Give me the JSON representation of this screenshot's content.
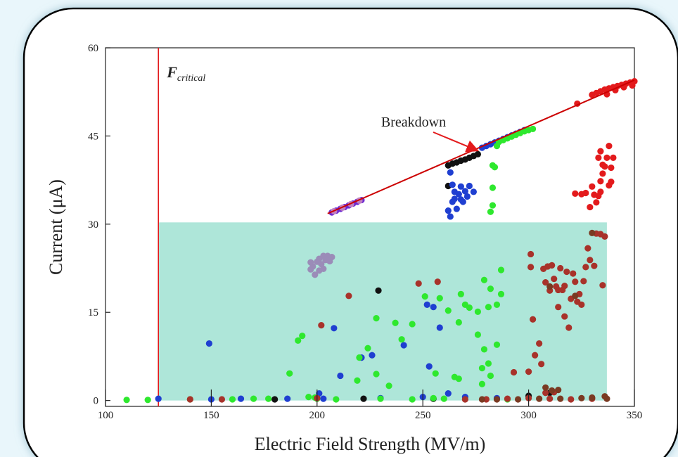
{
  "chart_data": {
    "type": "scatter",
    "xlabel": "Electric Field Strength (MV/m)",
    "ylabel": "Current (μA)",
    "xlim": [
      100,
      350
    ],
    "ylim": [
      -1,
      60
    ],
    "xticks": [
      "100",
      "150",
      "200",
      "250",
      "300",
      "350"
    ],
    "yticks": [
      "0",
      "15",
      "30",
      "45",
      "60"
    ],
    "critical_line": {
      "x": 125,
      "label_main": "F",
      "label_sub": "critical",
      "color": "#e31a1c"
    },
    "shaded_region": {
      "x_range": [
        125,
        337
      ],
      "y_range": [
        0,
        30.3
      ],
      "color": "#aee6d9"
    },
    "fit_line": {
      "x": [
        205,
        350
      ],
      "y": [
        31.8,
        54.5
      ],
      "color": "#cc0000"
    },
    "annotation": {
      "text": "Breakdown",
      "arrow_to": [
        276,
        42.5
      ]
    },
    "grid": false,
    "legend": "none",
    "series": [
      {
        "color": "#6f2bd1",
        "points": [
          [
            207,
            32
          ],
          [
            209,
            32.3
          ],
          [
            211,
            32.6
          ],
          [
            213,
            32.9
          ],
          [
            215,
            33.2
          ],
          [
            217,
            33.5
          ],
          [
            219,
            33.8
          ],
          [
            221,
            34.1
          ]
        ]
      },
      {
        "color": "#c07fc0",
        "points": [
          [
            208,
            32.2
          ],
          [
            212,
            32.8
          ],
          [
            216,
            33.4
          ],
          [
            220,
            34
          ]
        ]
      },
      {
        "color": "#111111",
        "points": [
          [
            262,
            40
          ],
          [
            264,
            40.3
          ],
          [
            266,
            40.5
          ],
          [
            268,
            40.8
          ],
          [
            270,
            41
          ],
          [
            272,
            41.3
          ],
          [
            274,
            41.6
          ],
          [
            276,
            41.9
          ],
          [
            262,
            36.5
          ],
          [
            229,
            18.7
          ],
          [
            300,
            0.8
          ],
          [
            310,
            1.3
          ],
          [
            255,
            0.3
          ],
          [
            222,
            0.3
          ],
          [
            180,
            0.2
          ]
        ]
      },
      {
        "color": "#1f3fd1",
        "points": [
          [
            278,
            43
          ],
          [
            280,
            43.3
          ],
          [
            282,
            43.6
          ],
          [
            284,
            43.9
          ],
          [
            286,
            44.2
          ],
          [
            288,
            44.5
          ],
          [
            290,
            44.8
          ],
          [
            292,
            45.1
          ],
          [
            294,
            45.4
          ],
          [
            296,
            45.7
          ],
          [
            298,
            46
          ],
          [
            263,
            38.8
          ],
          [
            265,
            35.5
          ],
          [
            264,
            33.8
          ],
          [
            262,
            32.3
          ],
          [
            263,
            31.3
          ],
          [
            266,
            32.6
          ],
          [
            268,
            34.2
          ],
          [
            270,
            35.6
          ],
          [
            272,
            36.5
          ],
          [
            274,
            35.5
          ],
          [
            271,
            34.7
          ],
          [
            269,
            33.8
          ],
          [
            267,
            35.1
          ],
          [
            265,
            34.3
          ],
          [
            264,
            36.7
          ],
          [
            268,
            36.4
          ],
          [
            149,
            9.7
          ],
          [
            208,
            12.3
          ],
          [
            211,
            4.2
          ],
          [
            221,
            7.3
          ],
          [
            226,
            7.7
          ],
          [
            241,
            9.4
          ],
          [
            252,
            16.3
          ],
          [
            255,
            15.9
          ],
          [
            258,
            12.4
          ],
          [
            253,
            5.8
          ],
          [
            201,
            1.2
          ],
          [
            203,
            0.3
          ],
          [
            150,
            0.2
          ],
          [
            125,
            0.3
          ],
          [
            164,
            0.3
          ],
          [
            186,
            0.3
          ],
          [
            230,
            0.4
          ],
          [
            250,
            0.6
          ],
          [
            262,
            1.2
          ],
          [
            270,
            0.6
          ],
          [
            285,
            0.4
          ]
        ]
      },
      {
        "color": "#2ee82e",
        "points": [
          [
            286,
            44
          ],
          [
            288,
            44.3
          ],
          [
            290,
            44.6
          ],
          [
            292,
            44.9
          ],
          [
            294,
            45.2
          ],
          [
            296,
            45.5
          ],
          [
            298,
            45.8
          ],
          [
            300,
            46
          ],
          [
            302,
            46.2
          ],
          [
            285,
            43.3
          ],
          [
            283,
            40
          ],
          [
            284,
            39.7
          ],
          [
            283,
            36.2
          ],
          [
            283,
            33.2
          ],
          [
            282,
            32.1
          ],
          [
            279,
            20.5
          ],
          [
            282,
            19
          ],
          [
            285,
            16.3
          ],
          [
            281,
            15.9
          ],
          [
            287,
            18.1
          ],
          [
            287,
            22.2
          ],
          [
            276,
            15.1
          ],
          [
            272,
            15.8
          ],
          [
            270,
            16.3
          ],
          [
            268,
            18.1
          ],
          [
            267,
            13.3
          ],
          [
            262,
            15.3
          ],
          [
            258,
            17.4
          ],
          [
            251,
            17.7
          ],
          [
            245,
            13
          ],
          [
            240,
            10.4
          ],
          [
            237,
            13.2
          ],
          [
            228,
            14
          ],
          [
            224,
            8.9
          ],
          [
            220,
            7.3
          ],
          [
            219,
            3.4
          ],
          [
            191,
            10.2
          ],
          [
            193,
            11
          ],
          [
            187,
            4.6
          ],
          [
            209,
            0.2
          ],
          [
            228,
            4.5
          ],
          [
            234,
            2.5
          ],
          [
            256,
            4.6
          ],
          [
            265,
            4
          ],
          [
            267,
            3.7
          ],
          [
            278,
            5.5
          ],
          [
            281,
            6.3
          ],
          [
            282,
            4.2
          ],
          [
            278,
            2.8
          ],
          [
            279,
            8.7
          ],
          [
            285,
            9.5
          ],
          [
            276,
            11.2
          ],
          [
            196,
            0.6
          ],
          [
            199,
            0.5
          ],
          [
            200,
            0.3
          ],
          [
            177,
            0.3
          ],
          [
            170,
            0.3
          ],
          [
            160,
            0.2
          ],
          [
            120,
            0.1
          ],
          [
            110,
            0.1
          ],
          [
            140,
            0.2
          ],
          [
            230,
            0.3
          ],
          [
            245,
            0.2
          ],
          [
            255,
            0.4
          ],
          [
            260,
            0.3
          ],
          [
            290,
            0.2
          ]
        ]
      },
      {
        "color": "#9b8cb8",
        "points": [
          [
            197,
            22.3
          ],
          [
            198,
            22.8
          ],
          [
            200,
            23.6
          ],
          [
            201,
            24.1
          ],
          [
            202,
            23.2
          ],
          [
            203,
            22.4
          ],
          [
            204,
            23.9
          ],
          [
            205,
            24.6
          ],
          [
            206,
            23.7
          ],
          [
            207,
            24.4
          ],
          [
            199,
            21.4
          ],
          [
            201,
            22.1
          ],
          [
            203,
            24.6
          ],
          [
            197,
            23.5
          ]
        ]
      },
      {
        "color": "#a8322a",
        "points": [
          [
            202,
            12.8
          ],
          [
            215,
            17.8
          ],
          [
            301,
            24.9
          ],
          [
            301,
            22.7
          ],
          [
            302,
            13.8
          ],
          [
            303,
            7.7
          ],
          [
            305,
            9.7
          ],
          [
            306,
            6.2
          ],
          [
            307,
            22.4
          ],
          [
            308,
            20.1
          ],
          [
            309,
            22.8
          ],
          [
            310,
            18.7
          ],
          [
            311,
            23
          ],
          [
            312,
            20.7
          ],
          [
            313,
            19.4
          ],
          [
            314,
            15.9
          ],
          [
            315,
            22.5
          ],
          [
            316,
            18.8
          ],
          [
            317,
            14.3
          ],
          [
            318,
            21.9
          ],
          [
            319,
            12.4
          ],
          [
            320,
            17.3
          ],
          [
            321,
            21.6
          ],
          [
            322,
            20.2
          ],
          [
            323,
            16.8
          ],
          [
            324,
            18.1
          ],
          [
            325,
            16.3
          ],
          [
            326,
            20.3
          ],
          [
            327,
            22.7
          ],
          [
            328,
            25.9
          ],
          [
            329,
            23.9
          ],
          [
            331,
            22.9
          ],
          [
            332,
            28.4
          ],
          [
            334,
            28.3
          ],
          [
            336,
            27.9
          ],
          [
            317,
            19.5
          ],
          [
            335,
            19.6
          ],
          [
            314,
            18.8
          ],
          [
            300,
            4.9
          ],
          [
            293,
            4.8
          ],
          [
            248,
            19.9
          ],
          [
            257,
            20.2
          ],
          [
            300,
            0.4
          ],
          [
            310,
            0.3
          ],
          [
            320,
            0.2
          ],
          [
            330,
            0.3
          ],
          [
            290,
            0.3
          ],
          [
            280,
            0.2
          ],
          [
            270,
            0.2
          ],
          [
            200,
            0.4
          ],
          [
            155,
            0.2
          ],
          [
            140,
            0.2
          ],
          [
            308,
            1.3
          ],
          [
            312,
            1.4
          ]
        ]
      },
      {
        "color": "#7a3a22",
        "points": [
          [
            330,
            28.5
          ],
          [
            322,
            17.8
          ],
          [
            310,
            19.4
          ],
          [
            308,
            2.2
          ],
          [
            311,
            1.7
          ],
          [
            314,
            1.8
          ],
          [
            330,
            0.5
          ],
          [
            336,
            0.7
          ],
          [
            278,
            0.2
          ],
          [
            285,
            0.2
          ],
          [
            295,
            0.2
          ],
          [
            305,
            0.3
          ],
          [
            315,
            0.3
          ],
          [
            325,
            0.4
          ],
          [
            337,
            0.3
          ]
        ]
      },
      {
        "color": "#e31a1c",
        "points": [
          [
            323,
            50.5
          ],
          [
            325,
            35.1
          ],
          [
            327,
            35.3
          ],
          [
            330,
            36.4
          ],
          [
            331,
            35
          ],
          [
            332,
            33.7
          ],
          [
            333,
            34.8
          ],
          [
            334,
            35.5
          ],
          [
            335,
            38.6
          ],
          [
            333,
            41.3
          ],
          [
            334,
            42.4
          ],
          [
            335,
            40.1
          ],
          [
            336,
            39.8
          ],
          [
            337,
            41.3
          ],
          [
            338,
            43.3
          ],
          [
            339,
            39.6
          ],
          [
            340,
            41.3
          ],
          [
            338,
            36.6
          ],
          [
            339,
            37.2
          ],
          [
            334,
            37.3
          ],
          [
            322,
            35.2
          ],
          [
            329,
            32.9
          ],
          [
            330,
            52
          ],
          [
            332,
            52.3
          ],
          [
            334,
            52.6
          ],
          [
            336,
            52.9
          ],
          [
            338,
            53.1
          ],
          [
            340,
            53.3
          ],
          [
            342,
            53.5
          ],
          [
            344,
            53.7
          ],
          [
            346,
            53.9
          ],
          [
            348,
            54.1
          ],
          [
            350,
            54.3
          ],
          [
            337,
            52.1
          ],
          [
            341,
            52.8
          ],
          [
            345,
            53.3
          ],
          [
            349,
            53.6
          ]
        ]
      }
    ]
  }
}
